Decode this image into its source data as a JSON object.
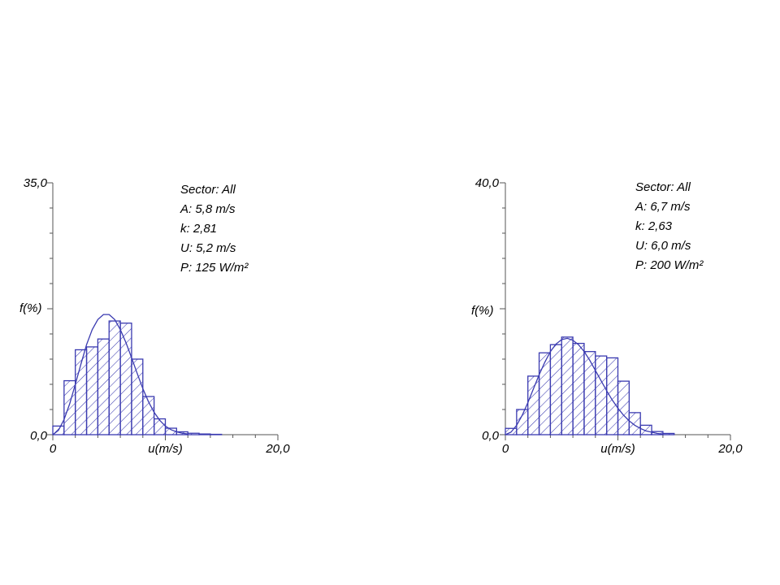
{
  "colors": {
    "series": "#3a3ab0",
    "axis": "#555555",
    "text": "#000000",
    "background": "#ffffff"
  },
  "chart_data": [
    {
      "type": "bar",
      "ylim": [
        0,
        35
      ],
      "xlim": [
        0,
        20
      ],
      "y_ticks": [
        "0,0",
        "35,0"
      ],
      "x_ticks": [
        "0",
        "20,0"
      ],
      "xlabel": "u(m/s)",
      "ylabel": "f(%)",
      "info": [
        "Sector: All",
        "A: 5,8 m/s",
        "k: 2,81",
        "U: 5,2 m/s",
        "P: 125 W/m²"
      ],
      "bin_width": 1,
      "bins": [
        0,
        1,
        2,
        3,
        4,
        5,
        6,
        7,
        8,
        9,
        10,
        11,
        12,
        13,
        14
      ],
      "values": [
        1.2,
        7.5,
        11.8,
        12.2,
        13.3,
        15.8,
        15.5,
        10.5,
        5.3,
        2.2,
        0.9,
        0.4,
        0.2,
        0.1,
        0.05
      ],
      "fit": {
        "name": "Weibull",
        "x": [
          0,
          0.5,
          1,
          1.5,
          2,
          2.5,
          3,
          3.5,
          4,
          4.5,
          5,
          5.5,
          6,
          6.5,
          7,
          7.5,
          8,
          8.5,
          9,
          9.5,
          10,
          10.5,
          11,
          11.5,
          12
        ],
        "y": [
          0,
          0.6,
          2.1,
          4.3,
          7.0,
          9.8,
          12.5,
          14.6,
          16.0,
          16.7,
          16.7,
          16.0,
          14.6,
          12.8,
          10.7,
          8.5,
          6.4,
          4.6,
          3.1,
          2.0,
          1.2,
          0.7,
          0.4,
          0.2,
          0.1
        ]
      }
    },
    {
      "type": "bar",
      "ylim": [
        0,
        40
      ],
      "xlim": [
        0,
        20
      ],
      "y_ticks": [
        "0,0",
        "40,0"
      ],
      "x_ticks": [
        "0",
        "20,0"
      ],
      "xlabel": "u(m/s)",
      "ylabel": "f(%)",
      "info": [
        "Sector: All",
        "A: 6,7 m/s",
        "k: 2,63",
        "U: 6,0 m/s",
        "P: 200 W/m²"
      ],
      "bin_width": 1,
      "bins": [
        0,
        1,
        2,
        3,
        4,
        5,
        6,
        7,
        8,
        9,
        10,
        11,
        12,
        13,
        14
      ],
      "values": [
        1.0,
        4.0,
        9.3,
        13.0,
        14.3,
        15.5,
        14.5,
        13.2,
        12.5,
        12.2,
        8.5,
        3.5,
        1.5,
        0.5,
        0.2
      ],
      "fit": {
        "name": "Weibull",
        "x": [
          0,
          0.5,
          1,
          1.5,
          2,
          2.5,
          3,
          3.5,
          4,
          4.5,
          5,
          5.5,
          6,
          6.5,
          7,
          7.5,
          8,
          8.5,
          9,
          9.5,
          10,
          10.5,
          11,
          11.5,
          12,
          12.5,
          13,
          13.5,
          14
        ],
        "y": [
          0,
          0.4,
          1.5,
          3.1,
          5.1,
          7.3,
          9.5,
          11.5,
          13.2,
          14.4,
          15.1,
          15.3,
          15.0,
          14.3,
          13.2,
          11.8,
          10.2,
          8.6,
          7.0,
          5.5,
          4.2,
          3.1,
          2.2,
          1.5,
          1.0,
          0.6,
          0.4,
          0.2,
          0.1
        ]
      }
    }
  ]
}
